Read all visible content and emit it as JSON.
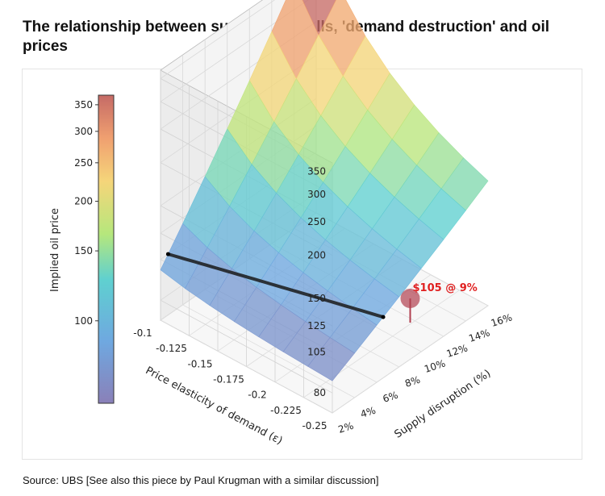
{
  "title": "The relationship between supply shortfalls, 'demand destruction' and oil prices",
  "source": "Source: UBS [See also this piece by Paul Krugman with a similar discussion]",
  "chart_data": {
    "type": "surface",
    "x_axis": {
      "label": "Supply disruption (%)",
      "ticks": [
        "2%",
        "4%",
        "6%",
        "8%",
        "10%",
        "12%",
        "14%",
        "16%"
      ],
      "values": [
        2,
        4,
        6,
        8,
        10,
        12,
        14,
        16
      ]
    },
    "y_axis": {
      "label": "Price elasticity of demand (ε)",
      "ticks": [
        "-0.1",
        "-0.125",
        "-0.15",
        "-0.175",
        "-0.2",
        "-0.225",
        "-0.25"
      ],
      "values": [
        -0.1,
        -0.125,
        -0.15,
        -0.175,
        -0.2,
        -0.225,
        -0.25
      ]
    },
    "z_axis": {
      "ticks": [
        "80",
        "105",
        "125",
        "150",
        "200",
        "250",
        "300",
        "350"
      ],
      "values": [
        80,
        105,
        125,
        150,
        200,
        250,
        300,
        350
      ],
      "scale": "log"
    },
    "colorbar": {
      "label": "Implied oil price",
      "ticks": [
        "100",
        "150",
        "200",
        "250",
        "300",
        "350"
      ],
      "values": [
        100,
        150,
        200,
        250,
        300,
        350
      ]
    },
    "model": {
      "base_price": 80
    },
    "highlight": {
      "label": "$105 @ 9%",
      "price": 105,
      "disruption": 9
    },
    "colors": {
      "low": "#8a7ec8",
      "mid": "#5ec8c8",
      "green": "#b8e680",
      "orange": "#f2b07a",
      "high": "#d6675a",
      "curve": "#1a1a1a",
      "marker": "#b04050",
      "annotation": "#e02020"
    }
  }
}
